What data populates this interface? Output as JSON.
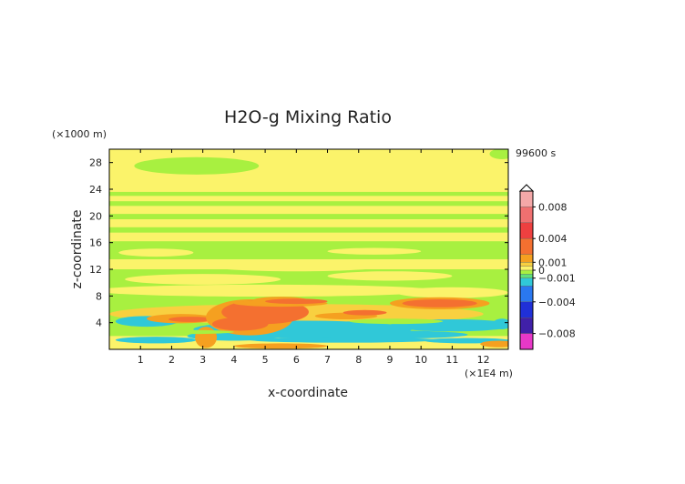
{
  "chart_data": {
    "type": "heatmap",
    "title": "H2O-g Mixing Ratio",
    "xlabel": "x-coordinate",
    "ylabel": "z-coordinate",
    "x_unit_label": "(×1E4 m)",
    "y_unit_label": "(×1000 m)",
    "time_label": "99600 s",
    "xlim": [
      0,
      12.8
    ],
    "ylim": [
      0,
      30
    ],
    "x_ticks": [
      {
        "value": 1,
        "label": "1"
      },
      {
        "value": 2,
        "label": "2"
      },
      {
        "value": 3,
        "label": "3"
      },
      {
        "value": 4,
        "label": "4"
      },
      {
        "value": 5,
        "label": "5"
      },
      {
        "value": 6,
        "label": "6"
      },
      {
        "value": 7,
        "label": "7"
      },
      {
        "value": 8,
        "label": "8"
      },
      {
        "value": 9,
        "label": "9"
      },
      {
        "value": 10,
        "label": "10"
      },
      {
        "value": 11,
        "label": "11"
      },
      {
        "value": 12,
        "label": "12"
      }
    ],
    "y_ticks": [
      {
        "value": 4,
        "label": "4"
      },
      {
        "value": 8,
        "label": "8"
      },
      {
        "value": 12,
        "label": "12"
      },
      {
        "value": 16,
        "label": "16"
      },
      {
        "value": 20,
        "label": "20"
      },
      {
        "value": 24,
        "label": "24"
      },
      {
        "value": 28,
        "label": "28"
      }
    ],
    "colorbar": {
      "vmin": -0.01,
      "vmax": 0.01,
      "levels": [
        {
          "from": 0.008,
          "to": 0.01,
          "color": "#f4a8a8"
        },
        {
          "from": 0.006,
          "to": 0.008,
          "color": "#f07070"
        },
        {
          "from": 0.004,
          "to": 0.006,
          "color": "#ee4040"
        },
        {
          "from": 0.002,
          "to": 0.004,
          "color": "#f47030"
        },
        {
          "from": 0.001,
          "to": 0.002,
          "color": "#f5a020"
        },
        {
          "from": 0.0005,
          "to": 0.001,
          "color": "#f8d040"
        },
        {
          "from": 0.0,
          "to": 0.0005,
          "color": "#fbf36a"
        },
        {
          "from": -0.0005,
          "to": 0.0,
          "color": "#a8f040"
        },
        {
          "from": -0.001,
          "to": -0.0005,
          "color": "#5fe07a"
        },
        {
          "from": -0.002,
          "to": -0.001,
          "color": "#30c8d8"
        },
        {
          "from": -0.004,
          "to": -0.002,
          "color": "#2a78f0"
        },
        {
          "from": -0.006,
          "to": -0.004,
          "color": "#2030d8"
        },
        {
          "from": -0.008,
          "to": -0.006,
          "color": "#4020a8"
        },
        {
          "from": -0.01,
          "to": -0.008,
          "color": "#e838c8"
        }
      ],
      "tick_labels": [
        {
          "value": 0.008,
          "label": "0.008"
        },
        {
          "value": 0.004,
          "label": "0.004"
        },
        {
          "value": 0.001,
          "label": "0.001"
        },
        {
          "value": 0.0,
          "label": "0"
        },
        {
          "value": -0.001,
          "label": "−0.001"
        },
        {
          "value": -0.004,
          "label": "−0.004"
        },
        {
          "value": -0.008,
          "label": "−0.008"
        }
      ]
    },
    "regions": [
      {
        "kind": "band",
        "y0": 0,
        "y1": 30,
        "value": 0.0003
      },
      {
        "kind": "band",
        "y0": 2,
        "y1": 12,
        "value": -0.0003
      },
      {
        "kind": "band",
        "y0": 13.5,
        "y1": 16.2,
        "value": -0.0003
      },
      {
        "kind": "band",
        "y0": 17.5,
        "y1": 18.3,
        "value": -0.0003
      },
      {
        "kind": "band",
        "y0": 19.5,
        "y1": 20.3,
        "value": -0.0003
      },
      {
        "kind": "band",
        "y0": 21.5,
        "y1": 22.2,
        "value": -0.0003
      },
      {
        "kind": "band",
        "y0": 23.0,
        "y1": 23.6,
        "value": -0.0003
      },
      {
        "kind": "blob",
        "x": 6.0,
        "y": 12.6,
        "rx": 3.0,
        "ry": 0.9,
        "value": 0.0003
      },
      {
        "kind": "blob",
        "x": 3.0,
        "y": 10.5,
        "rx": 2.5,
        "ry": 0.8,
        "value": 0.0003
      },
      {
        "kind": "blob",
        "x": 9.0,
        "y": 11.0,
        "rx": 2.0,
        "ry": 0.7,
        "value": 0.0003
      },
      {
        "kind": "blob",
        "x": 2.8,
        "y": 27.5,
        "rx": 2.0,
        "ry": 1.3,
        "value": -0.0003
      },
      {
        "kind": "blob",
        "x": 1.5,
        "y": 14.5,
        "rx": 1.2,
        "ry": 0.6,
        "value": 0.0003
      },
      {
        "kind": "blob",
        "x": 8.5,
        "y": 14.7,
        "rx": 1.5,
        "ry": 0.5,
        "value": 0.0003
      },
      {
        "kind": "blob",
        "x": 12.6,
        "y": 29.3,
        "rx": 0.4,
        "ry": 0.8,
        "value": -0.0003
      },
      {
        "kind": "blob",
        "x": 5.0,
        "y": 8.8,
        "rx": 5.5,
        "ry": 0.9,
        "value": 0.0003
      },
      {
        "kind": "blob",
        "x": 11.0,
        "y": 8.5,
        "rx": 1.8,
        "ry": 0.8,
        "value": 0.0003
      },
      {
        "kind": "blob",
        "x": 6.0,
        "y": 5.3,
        "rx": 6.0,
        "ry": 1.5,
        "value": 0.0007
      },
      {
        "kind": "blob",
        "x": 1.2,
        "y": 4.2,
        "rx": 1.0,
        "ry": 0.8,
        "value": -0.0015
      },
      {
        "kind": "blob",
        "x": 6.2,
        "y": 3.0,
        "rx": 3.5,
        "ry": 1.3,
        "value": -0.0015
      },
      {
        "kind": "blob",
        "x": 11.0,
        "y": 3.6,
        "rx": 2.0,
        "ry": 0.9,
        "value": -0.0015
      },
      {
        "kind": "blob",
        "x": 12.6,
        "y": 3.8,
        "rx": 0.3,
        "ry": 0.8,
        "value": -0.0015
      },
      {
        "kind": "blob",
        "x": 9.0,
        "y": 2.2,
        "rx": 2.5,
        "ry": 0.6,
        "value": -0.0015
      },
      {
        "kind": "blob",
        "x": 4.0,
        "y": 2.0,
        "rx": 1.5,
        "ry": 0.7,
        "value": -0.0015
      },
      {
        "kind": "blob",
        "x": 1.5,
        "y": 1.4,
        "rx": 1.3,
        "ry": 0.5,
        "value": -0.0015
      },
      {
        "kind": "blob",
        "x": 7.5,
        "y": 1.4,
        "rx": 3.0,
        "ry": 0.4,
        "value": -0.0015
      },
      {
        "kind": "blob",
        "x": 11.5,
        "y": 1.3,
        "rx": 1.4,
        "ry": 0.4,
        "value": -0.0015
      },
      {
        "kind": "blob",
        "x": 2.3,
        "y": 4.6,
        "rx": 1.1,
        "ry": 0.7,
        "value": 0.0015
      },
      {
        "kind": "blob",
        "x": 2.6,
        "y": 4.5,
        "rx": 0.7,
        "ry": 0.4,
        "value": 0.0025
      },
      {
        "kind": "blob",
        "x": 4.5,
        "y": 4.8,
        "rx": 1.4,
        "ry": 2.7,
        "value": 0.0015
      },
      {
        "kind": "blob",
        "x": 5.0,
        "y": 5.6,
        "rx": 1.4,
        "ry": 1.8,
        "value": 0.0025
      },
      {
        "kind": "blob",
        "x": 4.2,
        "y": 3.8,
        "rx": 0.9,
        "ry": 1.0,
        "value": 0.0025
      },
      {
        "kind": "blob",
        "x": 5.5,
        "y": 7.3,
        "rx": 0.9,
        "ry": 0.6,
        "value": 0.0015
      },
      {
        "kind": "blob",
        "x": 5.5,
        "y": 6.9,
        "rx": 1.5,
        "ry": 0.5,
        "value": 0.0015
      },
      {
        "kind": "blob",
        "x": 6.0,
        "y": 7.2,
        "rx": 1.0,
        "ry": 0.4,
        "value": 0.0025
      },
      {
        "kind": "blob",
        "x": 3.1,
        "y": 1.8,
        "rx": 0.35,
        "ry": 1.6,
        "value": 0.0015
      },
      {
        "kind": "blob",
        "x": 7.6,
        "y": 5.0,
        "rx": 1.0,
        "ry": 0.5,
        "value": 0.0015
      },
      {
        "kind": "blob",
        "x": 8.2,
        "y": 5.5,
        "rx": 0.7,
        "ry": 0.4,
        "value": 0.0025
      },
      {
        "kind": "blob",
        "x": 10.6,
        "y": 6.9,
        "rx": 1.6,
        "ry": 0.9,
        "value": 0.0015
      },
      {
        "kind": "blob",
        "x": 10.6,
        "y": 6.9,
        "rx": 1.2,
        "ry": 0.6,
        "value": 0.0025
      },
      {
        "kind": "blob",
        "x": 5.5,
        "y": 0.5,
        "rx": 1.5,
        "ry": 0.4,
        "value": 0.0015
      },
      {
        "kind": "blob",
        "x": 2.5,
        "y": 2.6,
        "rx": 1.5,
        "ry": 0.3,
        "value": -0.0003
      },
      {
        "kind": "blob",
        "x": 9.2,
        "y": 4.2,
        "rx": 1.5,
        "ry": 0.4,
        "value": -0.0003
      },
      {
        "kind": "blob",
        "x": 12.5,
        "y": 0.8,
        "rx": 0.6,
        "ry": 0.5,
        "value": 0.0015
      }
    ]
  }
}
